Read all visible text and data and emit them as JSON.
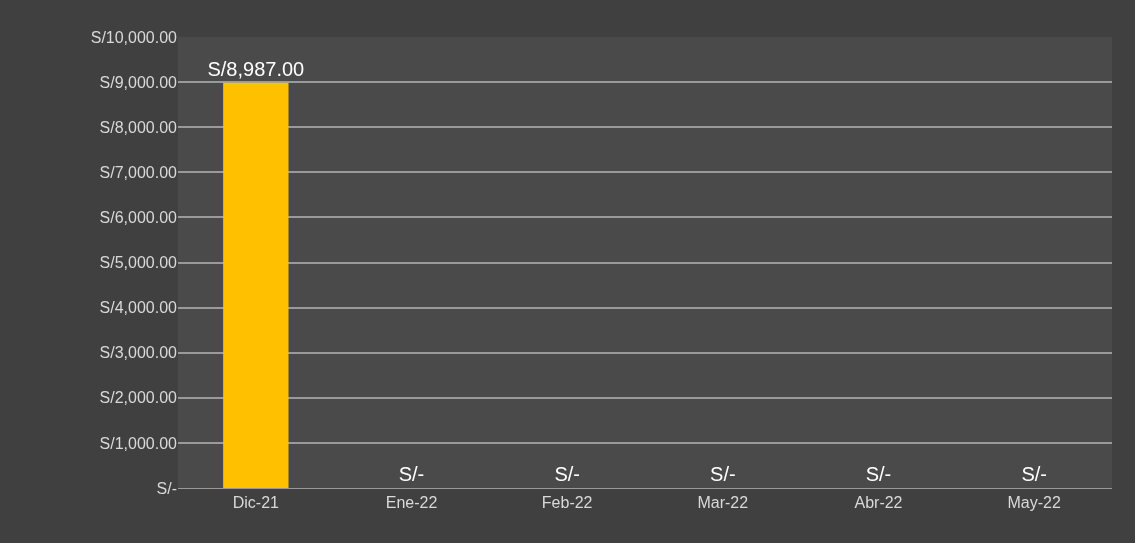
{
  "chart_data": {
    "type": "bar",
    "categories": [
      "Dic-21",
      "Ene-22",
      "Feb-22",
      "Mar-22",
      "Abr-22",
      "May-22"
    ],
    "values": [
      8987,
      0,
      0,
      0,
      0,
      0
    ],
    "value_labels": [
      "S/8,987.00",
      "S/-",
      "S/-",
      "S/-",
      "S/-",
      "S/-"
    ],
    "color": "#ffc000",
    "ylim": [
      0,
      10000
    ],
    "yticks": [
      {
        "value": 0,
        "label": "S/-"
      },
      {
        "value": 1000,
        "label": "S/1,000.00"
      },
      {
        "value": 2000,
        "label": "S/2,000.00"
      },
      {
        "value": 3000,
        "label": "S/3,000.00"
      },
      {
        "value": 4000,
        "label": "S/4,000.00"
      },
      {
        "value": 5000,
        "label": "S/5,000.00"
      },
      {
        "value": 6000,
        "label": "S/6,000.00"
      },
      {
        "value": 7000,
        "label": "S/7,000.00"
      },
      {
        "value": 8000,
        "label": "S/8,000.00"
      },
      {
        "value": 9000,
        "label": "S/9,000.00"
      },
      {
        "value": 10000,
        "label": "S/10,000.00"
      }
    ],
    "grid": "y"
  }
}
